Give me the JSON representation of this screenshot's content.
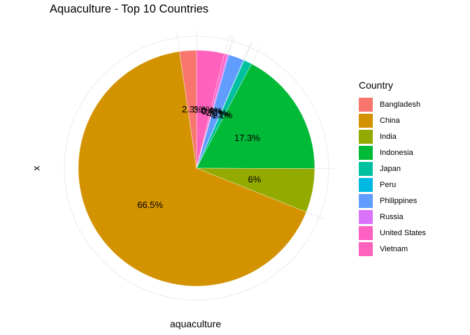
{
  "chart_data": {
    "type": "pie",
    "title": "Aquaculture - Top 10 Countries",
    "xlabel": "aquaculture",
    "ylabel": "x",
    "legend_title": "Country",
    "legend_position": "right",
    "grid": true,
    "categories": [
      "Bangladesh",
      "China",
      "India",
      "Indonesia",
      "Japan",
      "Peru",
      "Philippines",
      "Russia",
      "United States",
      "Vietnam"
    ],
    "values": [
      2.3,
      66.5,
      6.0,
      17.3,
      1.1,
      0.1,
      2.1,
      0.2,
      0.4,
      3.8
    ],
    "labels": [
      "2.3%",
      "66.5%",
      "6%",
      "17.3%",
      "1.1%",
      "0.1%",
      "2.1%",
      "0.2%",
      "0.4%",
      "3.8%"
    ],
    "colors": [
      "#F8766D",
      "#D39200",
      "#93AA00",
      "#00BA38",
      "#00C19F",
      "#00B9E3",
      "#619CFF",
      "#DB72FB",
      "#FF61C3",
      "#FF62BC"
    ]
  }
}
